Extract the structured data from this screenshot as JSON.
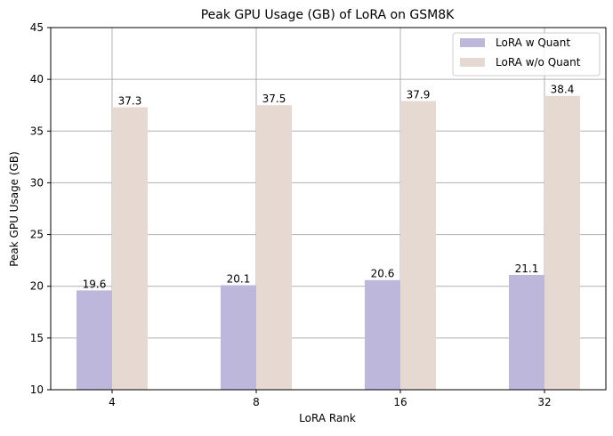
{
  "chart_data": {
    "type": "bar",
    "title": "Peak GPU Usage (GB) of LoRA on GSM8K",
    "xlabel": "LoRA Rank",
    "ylabel": "Peak GPU Usage (GB)",
    "categories": [
      "4",
      "8",
      "16",
      "32"
    ],
    "series": [
      {
        "name": "LoRA w Quant",
        "values": [
          19.6,
          20.1,
          20.6,
          21.1
        ],
        "color": "#bdb7dc"
      },
      {
        "name": "LoRA w/o Quant",
        "values": [
          37.3,
          37.5,
          37.9,
          38.4
        ],
        "color": "#e6d9d1"
      }
    ],
    "ylim": [
      10,
      45
    ],
    "yticks": [
      10,
      15,
      20,
      25,
      30,
      35,
      40,
      45
    ],
    "grid": true,
    "legend_position": "top-right"
  }
}
